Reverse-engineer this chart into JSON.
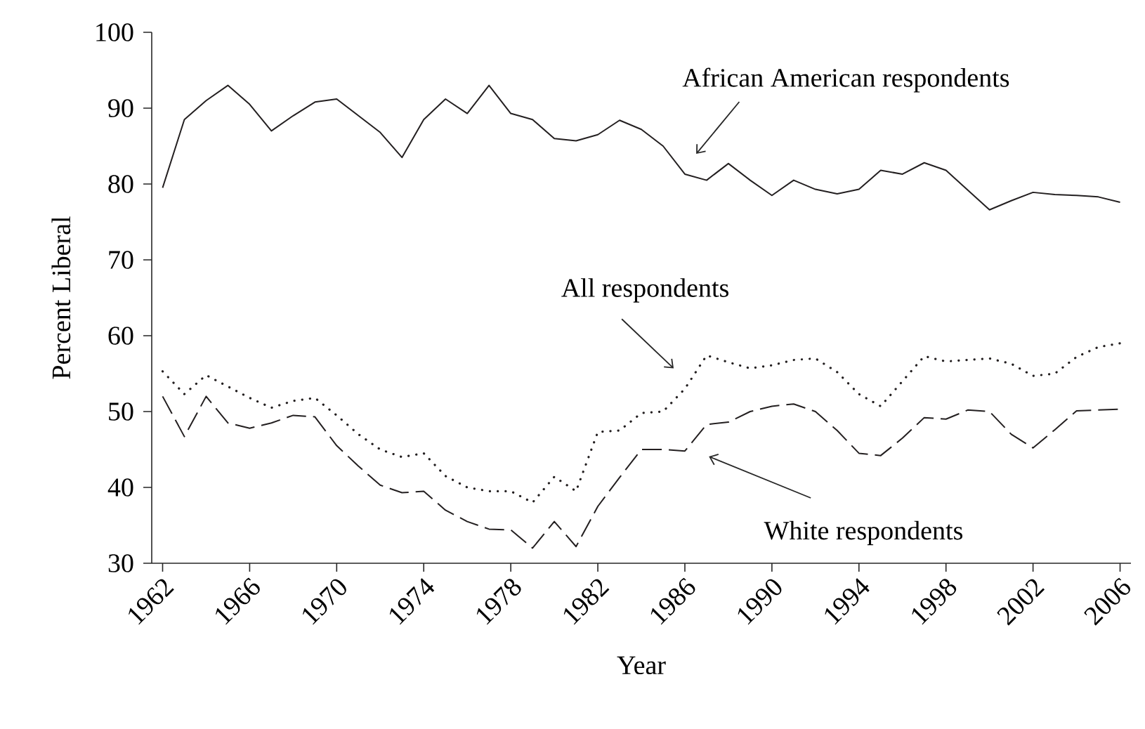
{
  "chart_data": {
    "type": "line",
    "xlabel": "Year",
    "ylabel": "Percent Liberal",
    "x": [
      1962,
      1963,
      1964,
      1965,
      1966,
      1967,
      1968,
      1969,
      1970,
      1971,
      1972,
      1973,
      1974,
      1975,
      1976,
      1977,
      1978,
      1979,
      1980,
      1981,
      1982,
      1983,
      1984,
      1985,
      1986,
      1987,
      1988,
      1989,
      1990,
      1991,
      1992,
      1993,
      1994,
      1995,
      1996,
      1997,
      1998,
      1999,
      2000,
      2001,
      2002,
      2003,
      2004,
      2005,
      2006
    ],
    "series": [
      {
        "color": "#231f20",
        "line_style": "solid",
        "values": [
          79.5,
          88.5,
          91,
          93,
          90.5,
          87,
          89,
          90.8,
          91.2,
          89,
          86.8,
          83.5,
          88.5,
          91.2,
          89.3,
          93,
          89.3,
          88.5,
          86,
          85.7,
          86.5,
          88.4,
          87.2,
          85,
          81.3,
          80.5,
          82.7,
          80.5,
          78.5,
          80.5,
          79.3,
          78.7,
          79.3,
          81.8,
          81.3,
          82.8,
          81.8,
          79.2,
          76.6,
          77.8,
          78.9,
          78.6,
          78.5,
          78.3,
          77.6
        ]
      },
      {
        "color": "#231f20",
        "line_style": "dotted",
        "values": [
          55.3,
          52.3,
          54.8,
          53.3,
          51.8,
          50.5,
          51.4,
          51.8,
          49.5,
          47,
          45,
          44,
          44.5,
          41.5,
          40,
          39.5,
          39.5,
          38,
          41.4,
          39.5,
          47.3,
          47.5,
          49.8,
          50,
          53,
          57.4,
          56.5,
          55.7,
          56.1,
          56.8,
          57,
          55.2,
          52.3,
          50.7,
          54,
          57.3,
          56.6,
          56.8,
          57,
          56.3,
          54.7,
          55,
          57.2,
          58.5,
          59
        ]
      },
      {
        "color": "#231f20",
        "line_style": "dashed",
        "values": [
          52,
          46.7,
          52,
          48.5,
          47.8,
          48.5,
          49.5,
          49.3,
          45.5,
          42.8,
          40.3,
          39.3,
          39.5,
          37,
          35.5,
          34.5,
          34.4,
          32,
          35.5,
          32.2,
          37.5,
          41.3,
          45,
          45,
          44.8,
          48.3,
          48.6,
          50,
          50.7,
          51,
          50,
          47.5,
          44.5,
          44.2,
          46.5,
          49.2,
          49,
          50.2,
          50,
          47,
          45.2,
          47.6,
          50.1,
          50.2,
          50.3
        ]
      }
    ],
    "annotations": [
      "African American respondents",
      "All respondents",
      "White respondents"
    ],
    "xlim": [
      1961.5,
      2006.5
    ],
    "ylim": [
      30,
      100
    ],
    "xticks": [
      1962,
      1966,
      1970,
      1974,
      1978,
      1982,
      1986,
      1990,
      1994,
      1998,
      2002,
      2006
    ],
    "yticks": [
      30,
      40,
      50,
      60,
      70,
      80,
      90,
      100
    ],
    "grid": false,
    "marker": "none"
  }
}
